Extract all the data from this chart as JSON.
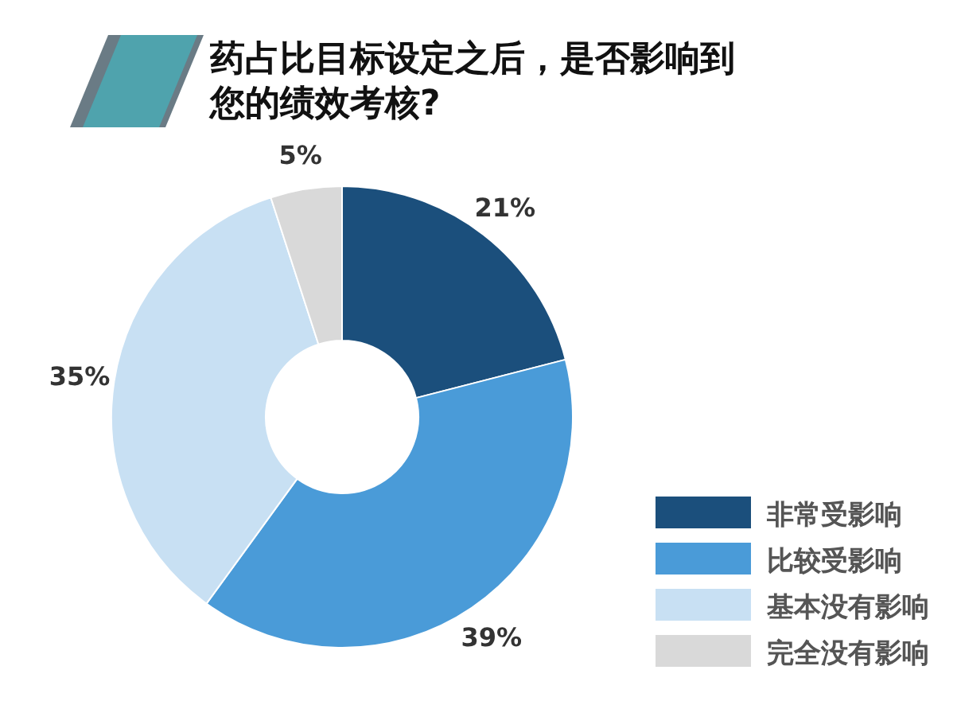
{
  "chart_data": {
    "type": "donut",
    "title": "药占比目标设定之后，是否影响到您的绩效考核?",
    "categories": [
      "非常受影响",
      "比较受影响",
      "基本没有影响",
      "完全没有影响"
    ],
    "values": [
      21,
      39,
      35,
      5
    ],
    "colors": [
      "#1b4f7c",
      "#4a9bd8",
      "#c8e0f3",
      "#d9d9d9"
    ],
    "value_labels": [
      "21%",
      "39%",
      "35%",
      "5%"
    ],
    "legend": "bottom right"
  }
}
